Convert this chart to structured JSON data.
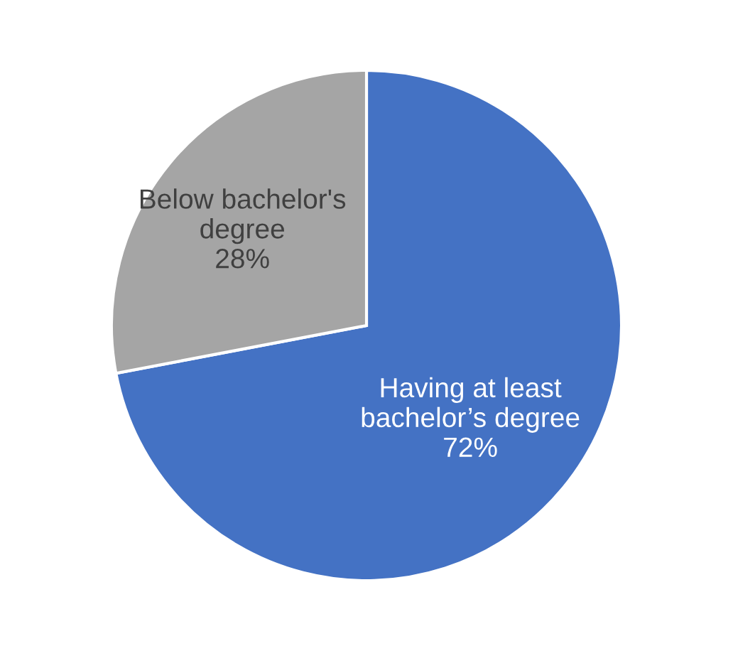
{
  "chart_data": {
    "type": "pie",
    "categories": [
      "Having at least\nbachelor’s degree",
      "Below bachelor's\ndegree"
    ],
    "values": [
      72,
      28
    ],
    "value_labels": [
      "72%",
      "28%"
    ],
    "colors": [
      "#4472c4",
      "#a5a5a5"
    ],
    "legend": false
  }
}
